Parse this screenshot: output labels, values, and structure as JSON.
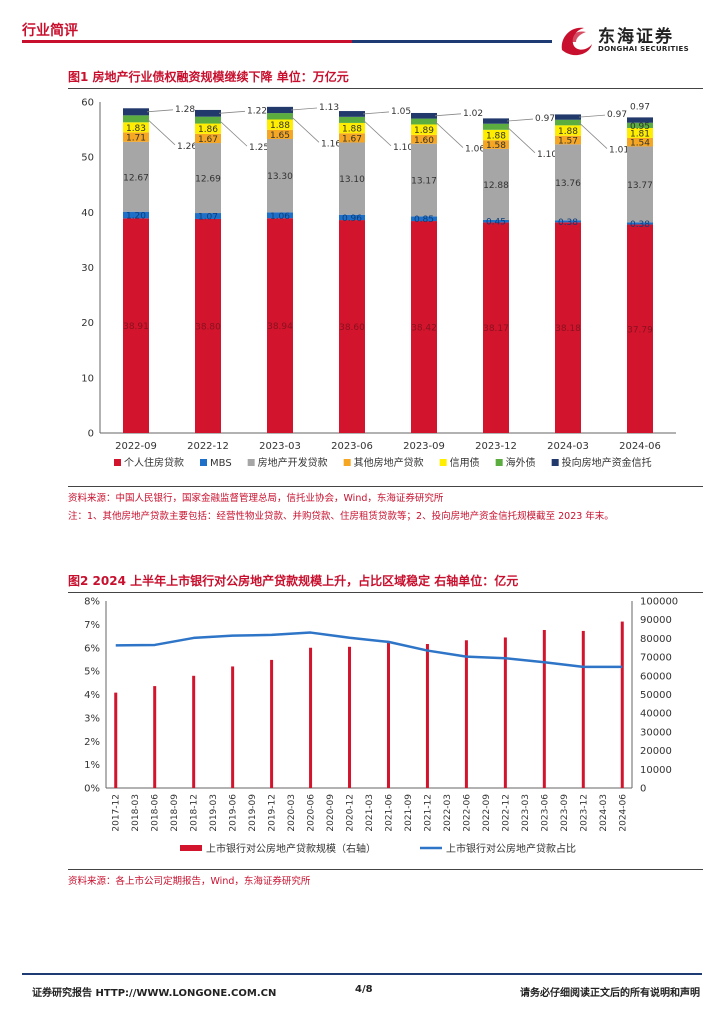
{
  "header": {
    "section_label": "行业简评",
    "logo_name": "东海证券",
    "logo_en": "DONGHAI SECURITIES"
  },
  "colors": {
    "red": "#d2152d",
    "blue": "#1e6fc7",
    "gray": "#a6a6a6",
    "orange": "#f5a623",
    "yellow": "#ffee00",
    "green": "#5aad3e",
    "navy": "#213a6b",
    "line": "#2e75c8"
  },
  "figure1": {
    "title": "图1  房地产行业债权融资规模继续下降  单位：万亿元",
    "source": "资料来源：中国人民银行，国家金融监督管理总局，信托业协会，Wind，东海证券研究所",
    "note": "注：1、其他房地产贷款主要包括：经营性物业贷款、并购贷款、住房租赁贷款等；2、投向房地产资金信托规模截至 2023 年末。",
    "chart_data": {
      "type": "bar",
      "stacked": true,
      "categories": [
        "2022-09",
        "2022-12",
        "2023-03",
        "2023-06",
        "2023-09",
        "2023-12",
        "2024-03",
        "2024-06"
      ],
      "ylim": [
        0,
        60
      ],
      "yticks": [
        "0",
        "10",
        "20",
        "30",
        "40",
        "50",
        "60"
      ],
      "legend_position": "bottom",
      "series": [
        {
          "name": "个人住房贷款",
          "color": "#d2152d",
          "values": [
            38.91,
            38.8,
            38.94,
            38.6,
            38.42,
            38.17,
            38.18,
            37.79
          ]
        },
        {
          "name": "MBS",
          "color": "#1e6fc7",
          "values": [
            1.2,
            1.07,
            1.06,
            0.96,
            0.85,
            0.45,
            0.38,
            0.38
          ]
        },
        {
          "name": "房地产开发贷款",
          "color": "#a6a6a6",
          "values": [
            12.67,
            12.69,
            13.3,
            13.1,
            13.17,
            12.88,
            13.76,
            13.77
          ]
        },
        {
          "name": "其他房地产贷款",
          "color": "#f5a623",
          "values": [
            1.71,
            1.67,
            1.65,
            1.67,
            1.6,
            1.58,
            1.57,
            1.54
          ]
        },
        {
          "name": "信用债",
          "color": "#ffee00",
          "values": [
            1.83,
            1.86,
            1.88,
            1.88,
            1.89,
            1.88,
            1.88,
            1.81
          ]
        },
        {
          "name": "海外债",
          "color": "#5aad3e",
          "values": [
            1.26,
            1.25,
            1.16,
            1.1,
            1.06,
            1.1,
            1.01,
            0.95
          ]
        },
        {
          "name": "投向房地产资金信托",
          "color": "#213a6b",
          "values": [
            1.28,
            1.22,
            1.13,
            1.05,
            1.02,
            0.97,
            0.97,
            0.97
          ]
        }
      ],
      "value_labels": {
        "s0": [
          "38.91",
          "38.80",
          "38.94",
          "38.60",
          "38.42",
          "38.17",
          "38.18",
          "37.79"
        ],
        "s1": [
          "1.20",
          "1.07",
          "1.06",
          "0.96",
          "0.85",
          "0.45",
          "0.38",
          "0.38"
        ],
        "s2": [
          "12.67",
          "12.69",
          "13.30",
          "13.10",
          "13.17",
          "12.88",
          "13.76",
          "13.77"
        ],
        "s3": [
          "1.71",
          "1.67",
          "1.65",
          "1.67",
          "1.60",
          "1.58",
          "1.57",
          "1.54"
        ],
        "s4": [
          "1.83",
          "1.86",
          "1.88",
          "1.88",
          "1.89",
          "1.88",
          "1.88",
          "1.81"
        ],
        "s5": [
          "1.26",
          "1.25",
          "1.16",
          "1.10",
          "1.06",
          "1.10",
          "1.01",
          "0.95"
        ],
        "s6": [
          "1.28",
          "1.22",
          "1.13",
          "1.05",
          "1.02",
          "0.97",
          "0.97",
          "0.97"
        ]
      }
    }
  },
  "figure2": {
    "title": "图2  2024 上半年上市银行对公房地产贷款规模上升，占比区域稳定  右轴单位：亿元",
    "source": "资料来源：各上市公司定期报告，Wind，东海证券研究所",
    "chart_data": {
      "type": "bar",
      "categories": [
        "2017-12",
        "2018-03",
        "2018-06",
        "2018-09",
        "2018-12",
        "2019-03",
        "2019-06",
        "2019-09",
        "2019-12",
        "2020-03",
        "2020-06",
        "2020-09",
        "2020-12",
        "2021-03",
        "2021-06",
        "2021-09",
        "2021-12",
        "2022-03",
        "2022-06",
        "2022-09",
        "2022-12",
        "2023-03",
        "2023-06",
        "2023-09",
        "2023-12",
        "2024-03",
        "2024-06"
      ],
      "y_left": {
        "ylim": [
          0,
          8
        ],
        "ticks": [
          "0%",
          "1%",
          "2%",
          "3%",
          "4%",
          "5%",
          "6%",
          "7%",
          "8%"
        ]
      },
      "y_right": {
        "ylim": [
          0,
          100000
        ],
        "ticks": [
          "0",
          "10000",
          "20000",
          "30000",
          "40000",
          "50000",
          "60000",
          "70000",
          "80000",
          "90000",
          "100000"
        ]
      },
      "legend_position": "bottom",
      "series": [
        {
          "name": "上市银行对公房地产贷款规模（右轴）",
          "kind": "bar",
          "axis": "right",
          "color": "#d2152d",
          "x": [
            "2017-12",
            "2018-06",
            "2018-12",
            "2019-06",
            "2019-12",
            "2020-06",
            "2020-12",
            "2021-06",
            "2021-12",
            "2022-06",
            "2022-12",
            "2023-06",
            "2023-12",
            "2024-06"
          ],
          "values": [
            51000,
            54500,
            60000,
            65000,
            68500,
            75000,
            75500,
            78000,
            77000,
            79000,
            80500,
            84500,
            84000,
            89000
          ]
        },
        {
          "name": "上市银行对公房地产贷款占比",
          "kind": "line",
          "axis": "left",
          "color": "#2e75c8",
          "x": [
            "2017-12",
            "2018-06",
            "2018-12",
            "2019-06",
            "2019-12",
            "2020-06",
            "2020-12",
            "2021-06",
            "2021-12",
            "2022-06",
            "2022-12",
            "2023-06",
            "2023-12",
            "2024-06"
          ],
          "values": [
            6.1,
            6.12,
            6.42,
            6.52,
            6.55,
            6.65,
            6.43,
            6.25,
            5.88,
            5.62,
            5.55,
            5.38,
            5.18,
            5.18
          ]
        }
      ]
    }
  },
  "footer": {
    "left": "证券研究报告    HTTP://WWW.LONGONE.COM.CN",
    "page": "4/8",
    "right": "请务必仔细阅读正文后的所有说明和声明"
  }
}
